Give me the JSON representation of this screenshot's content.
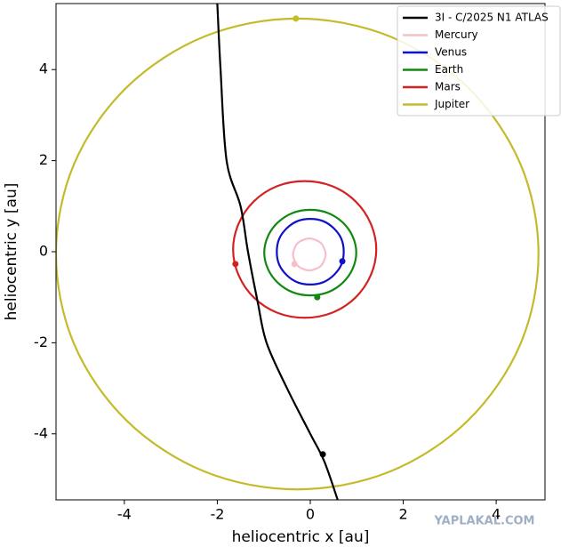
{
  "chart_data": {
    "type": "line",
    "xlabel": "heliocentric x [au]",
    "ylabel": "heliocentric y [au]",
    "xlim": [
      -5.47,
      5.05
    ],
    "ylim": [
      -5.45,
      5.45
    ],
    "xticks": [
      -4,
      -2,
      0,
      2,
      4
    ],
    "yticks": [
      -4,
      -2,
      0,
      2,
      4
    ],
    "legend": "upper right",
    "watermark": "YAPLAKAL.COM",
    "series": [
      {
        "name": "3I - C/2025 N1 ATLAS",
        "color": "#000000",
        "closed": false,
        "x": [
          -2.0,
          -1.93,
          -1.8,
          -1.5,
          -1.34,
          -1.13,
          -0.94,
          -0.5,
          0.0,
          0.3,
          0.59
        ],
        "y": [
          5.45,
          4.0,
          2.0,
          1.0,
          0.0,
          -1.11,
          -2.0,
          -3.0,
          -4.0,
          -4.6,
          -5.45
        ],
        "marker_x": 0.27,
        "marker_y": -4.45
      },
      {
        "name": "Mercury",
        "color": "#f7bfca",
        "closed": true,
        "x": [
          0.33,
          0.3,
          0.23,
          0.11,
          -0.02,
          -0.15,
          -0.27,
          -0.34,
          -0.37,
          -0.34,
          -0.27,
          -0.15,
          -0.02,
          0.11,
          0.23,
          0.3
        ],
        "y": [
          -0.06,
          0.07,
          0.19,
          0.26,
          0.29,
          0.26,
          0.19,
          0.07,
          -0.06,
          -0.19,
          -0.31,
          -0.38,
          -0.41,
          -0.38,
          -0.31,
          -0.19
        ],
        "marker_x": -0.34,
        "marker_y": -0.27
      },
      {
        "name": "Venus",
        "color": "#1010c8",
        "closed": true,
        "x": [
          0.72,
          0.67,
          0.51,
          0.28,
          0,
          -0.28,
          -0.51,
          -0.67,
          -0.72,
          -0.67,
          -0.51,
          -0.28,
          0,
          0.28,
          0.51,
          0.67
        ],
        "y": [
          0,
          0.28,
          0.51,
          0.67,
          0.72,
          0.67,
          0.51,
          0.28,
          0,
          -0.28,
          -0.51,
          -0.67,
          -0.72,
          -0.67,
          -0.51,
          -0.28
        ],
        "marker_x": 0.69,
        "marker_y": -0.21
      },
      {
        "name": "Earth",
        "color": "#118811",
        "closed": true,
        "x": [
          0.99,
          0.91,
          0.7,
          0.38,
          0,
          -0.38,
          -0.7,
          -0.91,
          -0.99,
          -0.91,
          -0.7,
          -0.38,
          0,
          0.38,
          0.7,
          0.91
        ],
        "y": [
          -0.02,
          0.34,
          0.64,
          0.85,
          0.92,
          0.85,
          0.64,
          0.34,
          -0.02,
          -0.38,
          -0.68,
          -0.89,
          -0.96,
          -0.89,
          -0.68,
          -0.38
        ],
        "marker_x": 0.15,
        "marker_y": -1.0
      },
      {
        "name": "Mars",
        "color": "#d42222",
        "closed": true,
        "x": [
          1.42,
          1.3,
          0.97,
          0.47,
          -0.12,
          -0.71,
          -1.21,
          -1.54,
          -1.66,
          -1.54,
          -1.21,
          -0.71,
          -0.12,
          0.47,
          0.97,
          1.3
        ],
        "y": [
          0.05,
          0.62,
          1.11,
          1.44,
          1.55,
          1.44,
          1.11,
          0.62,
          0.05,
          -0.52,
          -1.01,
          -1.34,
          -1.45,
          -1.34,
          -1.01,
          -0.52
        ],
        "marker_x": -1.61,
        "marker_y": -0.27
      },
      {
        "name": "Jupiter",
        "color": "#c4bb2a",
        "closed": true,
        "x": [
          4.91,
          4.52,
          3.39,
          1.71,
          -0.28,
          -2.27,
          -3.95,
          -5.08,
          -5.47,
          -5.08,
          -3.95,
          -2.27,
          -0.28,
          1.71,
          3.39,
          4.52
        ],
        "y": [
          -0.05,
          1.93,
          3.61,
          4.73,
          5.12,
          4.73,
          3.61,
          1.93,
          -0.05,
          -2.03,
          -3.71,
          -4.83,
          -5.22,
          -4.83,
          -3.71,
          -2.03
        ],
        "marker_x": -0.31,
        "marker_y": 5.12
      }
    ]
  }
}
